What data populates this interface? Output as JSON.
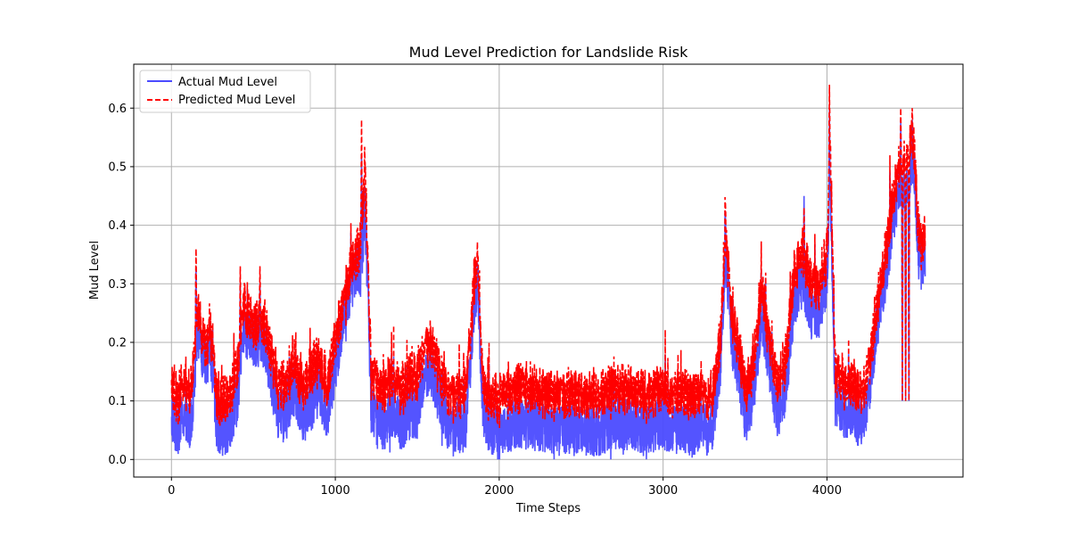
{
  "chart_data": {
    "type": "line",
    "title": "Mud Level Prediction for Landslide Risk",
    "xlabel": "Time Steps",
    "ylabel": "Mud Level",
    "xlim": [
      -230,
      4830
    ],
    "ylim": [
      -0.03,
      0.675
    ],
    "x_ticks": [
      0,
      1000,
      2000,
      3000,
      4000
    ],
    "y_ticks": [
      0.0,
      0.1,
      0.2,
      0.3,
      0.4,
      0.5,
      0.6
    ],
    "grid": true,
    "legend_position": "top-left",
    "n_points": 4600,
    "series": [
      {
        "name": "Actual Mud Level",
        "color": "#4b4bff",
        "style": "solid",
        "anchors_x": [
          0,
          40,
          80,
          120,
          160,
          200,
          240,
          280,
          320,
          360,
          400,
          440,
          480,
          520,
          560,
          600,
          650,
          700,
          750,
          800,
          850,
          900,
          950,
          1000,
          1050,
          1100,
          1130,
          1160,
          1180,
          1200,
          1220,
          1260,
          1300,
          1350,
          1400,
          1450,
          1500,
          1550,
          1600,
          1650,
          1700,
          1750,
          1800,
          1850,
          1870,
          1900,
          1950,
          2000,
          2100,
          2200,
          2300,
          2400,
          2500,
          2600,
          2700,
          2800,
          2900,
          3000,
          3100,
          3200,
          3300,
          3350,
          3380,
          3420,
          3460,
          3500,
          3550,
          3600,
          3650,
          3700,
          3750,
          3800,
          3850,
          3900,
          3950,
          4000,
          4020,
          4050,
          4100,
          4150,
          4200,
          4250,
          4300,
          4350,
          4400,
          4430,
          4460,
          4500,
          4530,
          4560,
          4600
        ],
        "anchors_y": [
          0.07,
          0.05,
          0.08,
          0.06,
          0.22,
          0.17,
          0.18,
          0.05,
          0.05,
          0.06,
          0.1,
          0.22,
          0.21,
          0.2,
          0.2,
          0.15,
          0.08,
          0.07,
          0.12,
          0.07,
          0.09,
          0.12,
          0.08,
          0.16,
          0.24,
          0.3,
          0.33,
          0.32,
          0.43,
          0.28,
          0.08,
          0.06,
          0.06,
          0.08,
          0.06,
          0.07,
          0.08,
          0.15,
          0.14,
          0.08,
          0.05,
          0.05,
          0.06,
          0.27,
          0.3,
          0.08,
          0.05,
          0.04,
          0.06,
          0.06,
          0.05,
          0.05,
          0.05,
          0.05,
          0.06,
          0.06,
          0.05,
          0.06,
          0.05,
          0.05,
          0.05,
          0.17,
          0.35,
          0.2,
          0.15,
          0.07,
          0.1,
          0.25,
          0.16,
          0.08,
          0.12,
          0.27,
          0.3,
          0.25,
          0.25,
          0.31,
          0.48,
          0.1,
          0.08,
          0.08,
          0.06,
          0.1,
          0.22,
          0.3,
          0.4,
          0.45,
          0.46,
          0.48,
          0.5,
          0.35,
          0.34
        ]
      },
      {
        "name": "Predicted Mud Level",
        "color": "#ff0000",
        "style": "dashed",
        "anchors_x": [
          0,
          40,
          80,
          120,
          160,
          200,
          240,
          280,
          320,
          360,
          400,
          440,
          480,
          520,
          560,
          600,
          650,
          700,
          750,
          800,
          850,
          900,
          950,
          1000,
          1050,
          1100,
          1130,
          1160,
          1180,
          1200,
          1220,
          1260,
          1300,
          1350,
          1400,
          1450,
          1500,
          1550,
          1600,
          1650,
          1700,
          1750,
          1800,
          1850,
          1870,
          1900,
          1950,
          2000,
          2100,
          2200,
          2300,
          2400,
          2500,
          2600,
          2700,
          2800,
          2900,
          3000,
          3100,
          3200,
          3300,
          3350,
          3380,
          3420,
          3460,
          3500,
          3550,
          3600,
          3650,
          3700,
          3750,
          3800,
          3850,
          3900,
          3950,
          4000,
          4020,
          4050,
          4100,
          4150,
          4200,
          4250,
          4300,
          4350,
          4400,
          4430,
          4460,
          4500,
          4530,
          4560,
          4600
        ],
        "anchors_y": [
          0.13,
          0.1,
          0.13,
          0.12,
          0.26,
          0.2,
          0.21,
          0.1,
          0.1,
          0.11,
          0.15,
          0.26,
          0.24,
          0.23,
          0.24,
          0.19,
          0.13,
          0.12,
          0.17,
          0.12,
          0.15,
          0.17,
          0.13,
          0.2,
          0.27,
          0.33,
          0.35,
          0.38,
          0.5,
          0.32,
          0.14,
          0.12,
          0.12,
          0.14,
          0.12,
          0.13,
          0.14,
          0.2,
          0.19,
          0.13,
          0.11,
          0.11,
          0.12,
          0.31,
          0.34,
          0.13,
          0.1,
          0.1,
          0.12,
          0.12,
          0.11,
          0.11,
          0.11,
          0.11,
          0.12,
          0.12,
          0.11,
          0.12,
          0.11,
          0.11,
          0.11,
          0.21,
          0.39,
          0.24,
          0.19,
          0.12,
          0.15,
          0.3,
          0.2,
          0.13,
          0.17,
          0.32,
          0.35,
          0.3,
          0.3,
          0.35,
          0.55,
          0.15,
          0.13,
          0.13,
          0.11,
          0.15,
          0.25,
          0.34,
          0.44,
          0.49,
          0.5,
          0.53,
          0.54,
          0.38,
          0.37
        ]
      }
    ],
    "spikes": [
      {
        "x": 150,
        "actual": 0.33,
        "predicted": 0.36
      },
      {
        "x": 420,
        "actual": 0.3,
        "predicted": 0.33
      },
      {
        "x": 540,
        "actual": 0.3,
        "predicted": 0.33
      },
      {
        "x": 1160,
        "actual": 0.52,
        "predicted": 0.58
      },
      {
        "x": 1870,
        "actual": 0.33,
        "predicted": 0.35
      },
      {
        "x": 3380,
        "actual": 0.42,
        "predicted": 0.44
      },
      {
        "x": 3860,
        "actual": 0.45,
        "predicted": 0.43
      },
      {
        "x": 4015,
        "actual": 0.6,
        "predicted": 0.64
      },
      {
        "x": 4450,
        "actual": 0.58,
        "predicted": 0.6
      },
      {
        "x": 4520,
        "actual": 0.58,
        "predicted": 0.6
      }
    ],
    "dips": [
      {
        "x": 4460,
        "actual": 0.1,
        "predicted": 0.1
      },
      {
        "x": 4480,
        "actual": 0.1,
        "predicted": 0.1
      },
      {
        "x": 4500,
        "actual": 0.1,
        "predicted": 0.1
      }
    ]
  }
}
